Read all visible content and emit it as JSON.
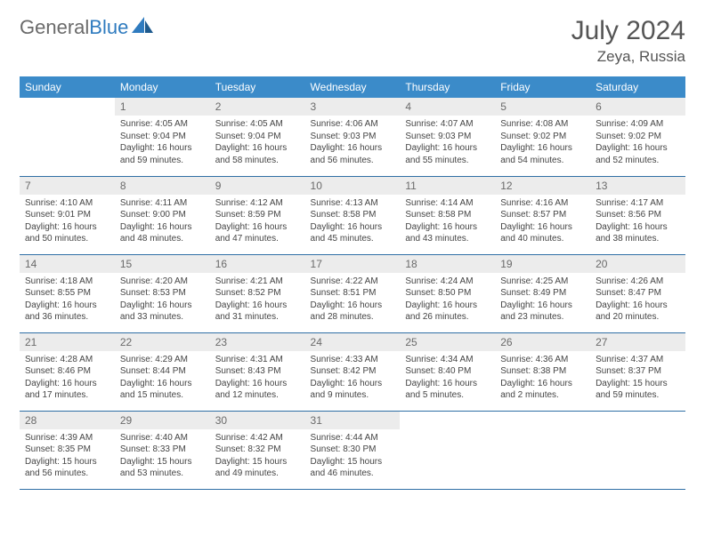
{
  "brand": {
    "part1": "General",
    "part2": "Blue"
  },
  "title": "July 2024",
  "location": "Zeya, Russia",
  "colors": {
    "header_bg": "#3b8bc9",
    "header_text": "#ffffff",
    "daynum_bg": "#ececec",
    "daynum_text": "#6a6a6a",
    "row_border": "#2f6fa5",
    "logo_gray": "#6a6a6a",
    "logo_blue": "#2f7bbf",
    "body_text": "#444444"
  },
  "weekdays": [
    "Sunday",
    "Monday",
    "Tuesday",
    "Wednesday",
    "Thursday",
    "Friday",
    "Saturday"
  ],
  "weeks": [
    [
      {
        "n": "",
        "lines": [
          "",
          "",
          "",
          ""
        ]
      },
      {
        "n": "1",
        "lines": [
          "Sunrise: 4:05 AM",
          "Sunset: 9:04 PM",
          "Daylight: 16 hours",
          "and 59 minutes."
        ]
      },
      {
        "n": "2",
        "lines": [
          "Sunrise: 4:05 AM",
          "Sunset: 9:04 PM",
          "Daylight: 16 hours",
          "and 58 minutes."
        ]
      },
      {
        "n": "3",
        "lines": [
          "Sunrise: 4:06 AM",
          "Sunset: 9:03 PM",
          "Daylight: 16 hours",
          "and 56 minutes."
        ]
      },
      {
        "n": "4",
        "lines": [
          "Sunrise: 4:07 AM",
          "Sunset: 9:03 PM",
          "Daylight: 16 hours",
          "and 55 minutes."
        ]
      },
      {
        "n": "5",
        "lines": [
          "Sunrise: 4:08 AM",
          "Sunset: 9:02 PM",
          "Daylight: 16 hours",
          "and 54 minutes."
        ]
      },
      {
        "n": "6",
        "lines": [
          "Sunrise: 4:09 AM",
          "Sunset: 9:02 PM",
          "Daylight: 16 hours",
          "and 52 minutes."
        ]
      }
    ],
    [
      {
        "n": "7",
        "lines": [
          "Sunrise: 4:10 AM",
          "Sunset: 9:01 PM",
          "Daylight: 16 hours",
          "and 50 minutes."
        ]
      },
      {
        "n": "8",
        "lines": [
          "Sunrise: 4:11 AM",
          "Sunset: 9:00 PM",
          "Daylight: 16 hours",
          "and 48 minutes."
        ]
      },
      {
        "n": "9",
        "lines": [
          "Sunrise: 4:12 AM",
          "Sunset: 8:59 PM",
          "Daylight: 16 hours",
          "and 47 minutes."
        ]
      },
      {
        "n": "10",
        "lines": [
          "Sunrise: 4:13 AM",
          "Sunset: 8:58 PM",
          "Daylight: 16 hours",
          "and 45 minutes."
        ]
      },
      {
        "n": "11",
        "lines": [
          "Sunrise: 4:14 AM",
          "Sunset: 8:58 PM",
          "Daylight: 16 hours",
          "and 43 minutes."
        ]
      },
      {
        "n": "12",
        "lines": [
          "Sunrise: 4:16 AM",
          "Sunset: 8:57 PM",
          "Daylight: 16 hours",
          "and 40 minutes."
        ]
      },
      {
        "n": "13",
        "lines": [
          "Sunrise: 4:17 AM",
          "Sunset: 8:56 PM",
          "Daylight: 16 hours",
          "and 38 minutes."
        ]
      }
    ],
    [
      {
        "n": "14",
        "lines": [
          "Sunrise: 4:18 AM",
          "Sunset: 8:55 PM",
          "Daylight: 16 hours",
          "and 36 minutes."
        ]
      },
      {
        "n": "15",
        "lines": [
          "Sunrise: 4:20 AM",
          "Sunset: 8:53 PM",
          "Daylight: 16 hours",
          "and 33 minutes."
        ]
      },
      {
        "n": "16",
        "lines": [
          "Sunrise: 4:21 AM",
          "Sunset: 8:52 PM",
          "Daylight: 16 hours",
          "and 31 minutes."
        ]
      },
      {
        "n": "17",
        "lines": [
          "Sunrise: 4:22 AM",
          "Sunset: 8:51 PM",
          "Daylight: 16 hours",
          "and 28 minutes."
        ]
      },
      {
        "n": "18",
        "lines": [
          "Sunrise: 4:24 AM",
          "Sunset: 8:50 PM",
          "Daylight: 16 hours",
          "and 26 minutes."
        ]
      },
      {
        "n": "19",
        "lines": [
          "Sunrise: 4:25 AM",
          "Sunset: 8:49 PM",
          "Daylight: 16 hours",
          "and 23 minutes."
        ]
      },
      {
        "n": "20",
        "lines": [
          "Sunrise: 4:26 AM",
          "Sunset: 8:47 PM",
          "Daylight: 16 hours",
          "and 20 minutes."
        ]
      }
    ],
    [
      {
        "n": "21",
        "lines": [
          "Sunrise: 4:28 AM",
          "Sunset: 8:46 PM",
          "Daylight: 16 hours",
          "and 17 minutes."
        ]
      },
      {
        "n": "22",
        "lines": [
          "Sunrise: 4:29 AM",
          "Sunset: 8:44 PM",
          "Daylight: 16 hours",
          "and 15 minutes."
        ]
      },
      {
        "n": "23",
        "lines": [
          "Sunrise: 4:31 AM",
          "Sunset: 8:43 PM",
          "Daylight: 16 hours",
          "and 12 minutes."
        ]
      },
      {
        "n": "24",
        "lines": [
          "Sunrise: 4:33 AM",
          "Sunset: 8:42 PM",
          "Daylight: 16 hours",
          "and 9 minutes."
        ]
      },
      {
        "n": "25",
        "lines": [
          "Sunrise: 4:34 AM",
          "Sunset: 8:40 PM",
          "Daylight: 16 hours",
          "and 5 minutes."
        ]
      },
      {
        "n": "26",
        "lines": [
          "Sunrise: 4:36 AM",
          "Sunset: 8:38 PM",
          "Daylight: 16 hours",
          "and 2 minutes."
        ]
      },
      {
        "n": "27",
        "lines": [
          "Sunrise: 4:37 AM",
          "Sunset: 8:37 PM",
          "Daylight: 15 hours",
          "and 59 minutes."
        ]
      }
    ],
    [
      {
        "n": "28",
        "lines": [
          "Sunrise: 4:39 AM",
          "Sunset: 8:35 PM",
          "Daylight: 15 hours",
          "and 56 minutes."
        ]
      },
      {
        "n": "29",
        "lines": [
          "Sunrise: 4:40 AM",
          "Sunset: 8:33 PM",
          "Daylight: 15 hours",
          "and 53 minutes."
        ]
      },
      {
        "n": "30",
        "lines": [
          "Sunrise: 4:42 AM",
          "Sunset: 8:32 PM",
          "Daylight: 15 hours",
          "and 49 minutes."
        ]
      },
      {
        "n": "31",
        "lines": [
          "Sunrise: 4:44 AM",
          "Sunset: 8:30 PM",
          "Daylight: 15 hours",
          "and 46 minutes."
        ]
      },
      {
        "n": "",
        "lines": [
          "",
          "",
          "",
          ""
        ]
      },
      {
        "n": "",
        "lines": [
          "",
          "",
          "",
          ""
        ]
      },
      {
        "n": "",
        "lines": [
          "",
          "",
          "",
          ""
        ]
      }
    ]
  ]
}
